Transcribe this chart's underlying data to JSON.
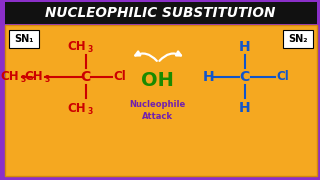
{
  "bg_color": "#F5A820",
  "border_color": "#8B2FC9",
  "title_text": "NUCLEOPHILIC SUBSTITUTION",
  "title_bg": "#111111",
  "title_color": "#FFFFFF",
  "sn1_label": "SN₁",
  "sn2_label": "SN₂",
  "oh_color": "#1A8A00",
  "red_color": "#CC0000",
  "blue_color": "#1055CC",
  "purple_color": "#7020B0",
  "nucleophile_text": "Nucleophile\nAttack"
}
